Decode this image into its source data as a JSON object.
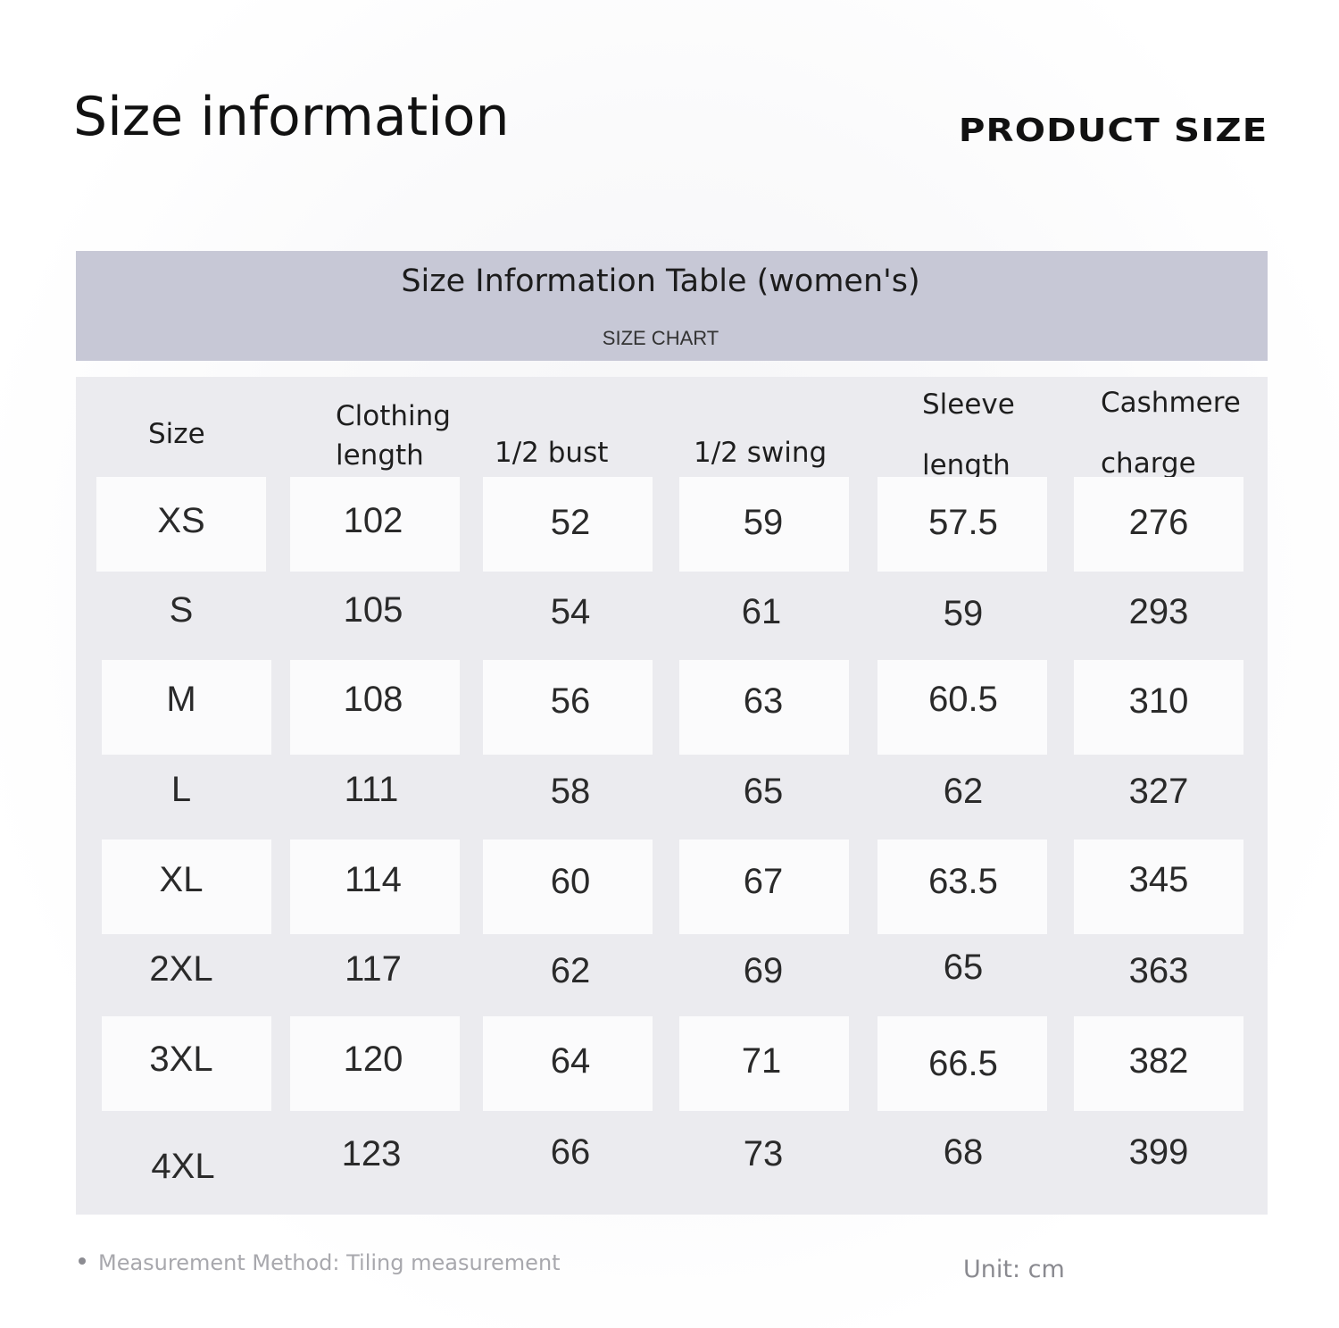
{
  "header": {
    "title": "Size information",
    "badge": "PRODUCT SIZE"
  },
  "table": {
    "title": "Size Information Table (women's)",
    "subtitle": "SIZE CHART",
    "columns": [
      [
        "Size"
      ],
      [
        "Clothing",
        "length"
      ],
      [
        "1/2 bust"
      ],
      [
        "1/2 swing"
      ],
      [
        "Sleeve",
        "length"
      ],
      [
        "Cashmere",
        "charge"
      ]
    ],
    "rows": [
      [
        "XS",
        "102",
        "52",
        "59",
        "57.5",
        "276"
      ],
      [
        "S",
        "105",
        "54",
        "61",
        "59",
        "293"
      ],
      [
        "M",
        "108",
        "56",
        "63",
        "60.5",
        "310"
      ],
      [
        "L",
        "111",
        "58",
        "65",
        "62",
        "327"
      ],
      [
        "XL",
        "114",
        "60",
        "67",
        "63.5",
        "345"
      ],
      [
        "2XL",
        "117",
        "62",
        "69",
        "65",
        "363"
      ],
      [
        "3XL",
        "120",
        "64",
        "71",
        "66.5",
        "382"
      ],
      [
        "4XL",
        "123",
        "66",
        "73",
        "68",
        "399"
      ]
    ]
  },
  "footer": {
    "note": "Measurement Method: Tiling measurement",
    "unit": "Unit: cm"
  }
}
